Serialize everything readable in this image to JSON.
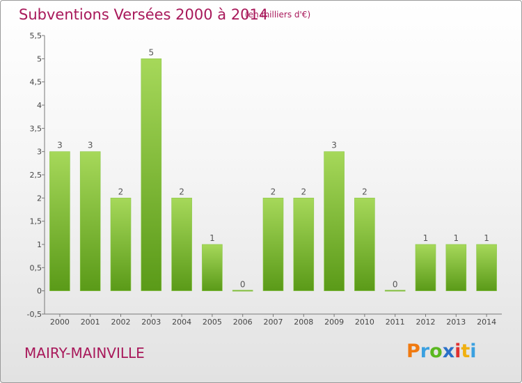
{
  "header": {
    "title": "Subventions Versées 2000 à 2014",
    "unit": "(en milliers d'€)"
  },
  "footer": {
    "commune": "MAIRY-MAINVILLE",
    "logo": "Proxiti"
  },
  "colors": {
    "title": "#a8185a",
    "bar_top": "#a6d85a",
    "bar_bottom": "#5a9a18",
    "logo": [
      "#f07a10",
      "#3aa0e0",
      "#5ab820",
      "#2a70c8",
      "#e03030",
      "#f0b010",
      "#3aa0e0"
    ]
  },
  "chart_data": {
    "type": "bar",
    "categories": [
      "2000",
      "2001",
      "2002",
      "2003",
      "2004",
      "2005",
      "2006",
      "2007",
      "2008",
      "2009",
      "2010",
      "2011",
      "2012",
      "2013",
      "2014"
    ],
    "values": [
      3,
      3,
      2,
      5,
      2,
      1,
      0,
      2,
      2,
      3,
      2,
      0,
      1,
      1,
      1
    ],
    "data_labels": [
      "3",
      "3",
      "2",
      "5",
      "2",
      "1",
      "0",
      "2",
      "2",
      "3",
      "2",
      "0",
      "1",
      "1",
      "1"
    ],
    "yticks": [
      "-0,5",
      "0",
      "0,5",
      "1",
      "1,5",
      "2",
      "2,5",
      "3",
      "3,5",
      "4",
      "4,5",
      "5",
      "5,5"
    ],
    "ylim": [
      -0.5,
      5.5
    ],
    "grid": false,
    "legend": "none",
    "title": "Subventions Versées 2000 à 2014",
    "xlabel": "",
    "ylabel": ""
  }
}
